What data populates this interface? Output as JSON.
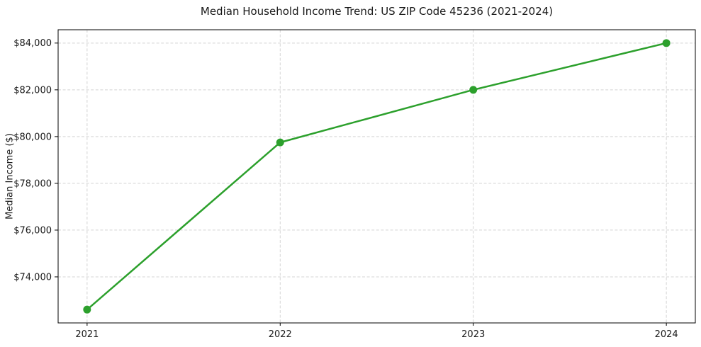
{
  "chart_data": {
    "type": "line",
    "title": "Median Household Income Trend: US ZIP Code 45236 (2021-2024)",
    "xlabel": "",
    "ylabel": "Median Income ($)",
    "x": [
      2021,
      2022,
      2023,
      2024
    ],
    "x_tick_labels": [
      "2021",
      "2022",
      "2023",
      "2024"
    ],
    "series": [
      {
        "name": "Median Household Income",
        "values": [
          72600,
          79750,
          82000,
          84000
        ],
        "color": "#2ca02c",
        "marker": "circle"
      }
    ],
    "y_ticks": [
      74000,
      76000,
      78000,
      80000,
      82000,
      84000
    ],
    "y_tick_labels": [
      "$74,000",
      "$76,000",
      "$78,000",
      "$80,000",
      "$82,000",
      "$84,000"
    ],
    "xlim": [
      2020.85,
      2024.15
    ],
    "ylim": [
      72030,
      84570
    ],
    "grid": true,
    "grid_style": "dashed",
    "legend_position": "none"
  }
}
